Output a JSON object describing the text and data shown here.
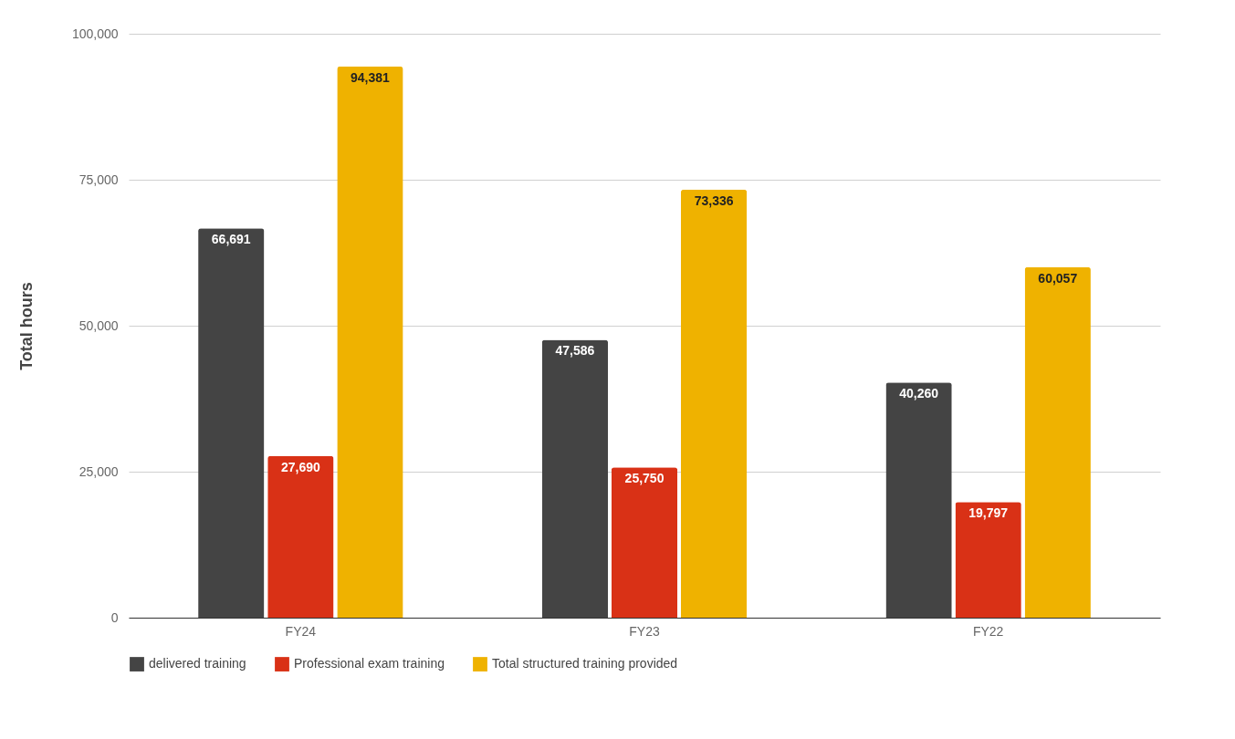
{
  "chart_data": {
    "type": "bar",
    "ylabel": "Total hours",
    "categories": [
      "FY24",
      "FY23",
      "FY22"
    ],
    "series": [
      {
        "name": "delivered training",
        "color": "#444444",
        "values": [
          66691,
          47586,
          40260
        ],
        "value_labels": [
          "66,691",
          "47,586",
          "40,260"
        ]
      },
      {
        "name": "Professional exam training",
        "color": "#d93116",
        "values": [
          27690,
          25750,
          19797
        ],
        "value_labels": [
          "27,690",
          "25,750",
          "19,797"
        ]
      },
      {
        "name": "Total structured training provided",
        "color": "#efb200",
        "values": [
          94381,
          73336,
          60057
        ],
        "value_labels": [
          "94,381",
          "73,336",
          "60,057"
        ]
      }
    ],
    "ylim": [
      0,
      100000
    ],
    "yticks": [
      0,
      {
        "value": 25000,
        "label": "25,000"
      },
      {
        "value": 50000,
        "label": "50,000"
      },
      {
        "value": 75000,
        "label": "75,000"
      },
      {
        "value": 100000,
        "label": "100,000"
      }
    ],
    "grid": "y",
    "legend": "bottom"
  }
}
